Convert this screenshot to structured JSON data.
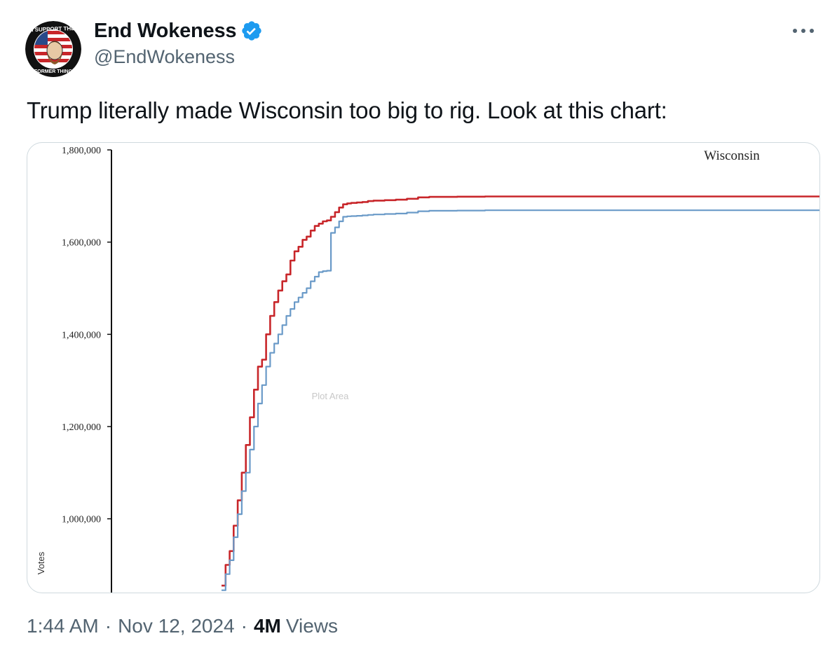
{
  "tweet": {
    "author": {
      "display_name": "End Wokeness",
      "handle": "@EndWokeness",
      "verified": true,
      "avatar_icon": "i-support-the-former-thing-badge",
      "avatar_arc_top": "I SUPPORT THE",
      "avatar_arc_bottom": "FORMER THING"
    },
    "more_icon": "more-dots-icon",
    "text": "Trump literally made Wisconsin too big to rig. Look at this chart:",
    "time": "1:44 AM",
    "date": "Nov 12, 2024",
    "views_count": "4M",
    "views_label": "Views",
    "separator": "·"
  },
  "chart_data": {
    "type": "line",
    "title": "Wisconsin",
    "ylabel": "Votes",
    "plot_area_label": "Plot Area",
    "yticks": [
      1000000,
      1200000,
      1400000,
      1600000,
      1800000
    ],
    "ytick_labels": [
      "1,000,000",
      "1,200,000",
      "1,400,000",
      "1,600,000",
      "1,800,000"
    ],
    "ylim": [
      840000,
      1800000
    ],
    "xlim": [
      0,
      100
    ],
    "grid": false,
    "series": [
      {
        "color": "#c8262a",
        "x": [
          0,
          0.5,
          1,
          1.5,
          2,
          2.5,
          3,
          3.5,
          4,
          4.5,
          5,
          5.5,
          6,
          6.5,
          7,
          7.5,
          8,
          8.5,
          9,
          9.5,
          10,
          10.5,
          11,
          11.5,
          12,
          12.5,
          13,
          13.5,
          14,
          14.5,
          15,
          15.5,
          16,
          17,
          18,
          19,
          20,
          22,
          24,
          26,
          28,
          30,
          35,
          40,
          50,
          60,
          70,
          80,
          90,
          100
        ],
        "y": [
          855000,
          900000,
          930000,
          985000,
          1040000,
          1100000,
          1160000,
          1220000,
          1280000,
          1330000,
          1345000,
          1400000,
          1440000,
          1470000,
          1495000,
          1515000,
          1530000,
          1560000,
          1580000,
          1590000,
          1605000,
          1612000,
          1625000,
          1635000,
          1640000,
          1645000,
          1647000,
          1655000,
          1665000,
          1675000,
          1682000,
          1684000,
          1685000,
          1686000,
          1687000,
          1689000,
          1690000,
          1691000,
          1692000,
          1694000,
          1697000,
          1698000,
          1698500,
          1699000,
          1699000,
          1699000,
          1699000,
          1699000,
          1699000,
          1699000
        ]
      },
      {
        "color": "#6a9ac8",
        "x": [
          0,
          0.5,
          1,
          1.5,
          2,
          2.5,
          3,
          3.5,
          4,
          4.5,
          5,
          5.5,
          6,
          6.5,
          7,
          7.5,
          8,
          8.5,
          9,
          9.5,
          10,
          10.5,
          11,
          11.5,
          12,
          12.5,
          13,
          13.5,
          14,
          14.5,
          15,
          15.5,
          16,
          17,
          18,
          19,
          20,
          22,
          24,
          26,
          28,
          30,
          35,
          40,
          50,
          60,
          70,
          80,
          90,
          100
        ],
        "y": [
          845000,
          880000,
          910000,
          960000,
          1010000,
          1060000,
          1100000,
          1150000,
          1200000,
          1250000,
          1290000,
          1330000,
          1360000,
          1380000,
          1400000,
          1420000,
          1440000,
          1455000,
          1470000,
          1480000,
          1490000,
          1500000,
          1515000,
          1525000,
          1535000,
          1537000,
          1538000,
          1620000,
          1632000,
          1645000,
          1655000,
          1656000,
          1656500,
          1657000,
          1658000,
          1659000,
          1660000,
          1661000,
          1662000,
          1664000,
          1667000,
          1668000,
          1668500,
          1669000,
          1669000,
          1669000,
          1669000,
          1669000,
          1669000,
          1669000
        ]
      }
    ]
  }
}
